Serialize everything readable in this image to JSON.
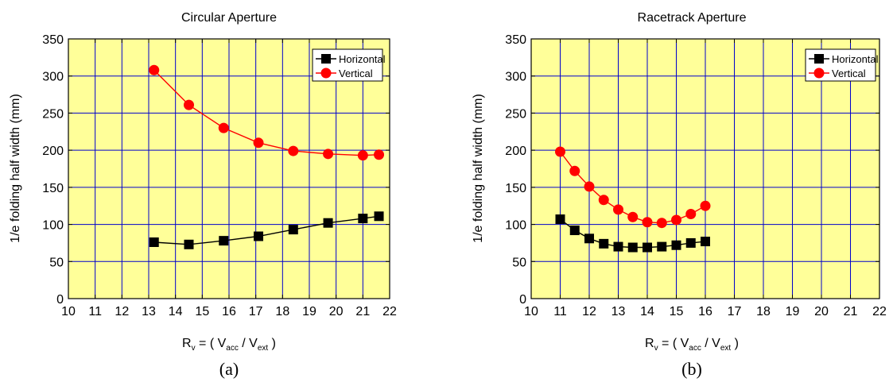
{
  "colors": {
    "plot_background": "#ffff99",
    "grid": "#0000cc",
    "horizontal_series": "#000000",
    "vertical_series": "#ff0000"
  },
  "chart_data": [
    {
      "type": "line",
      "title": "Circular Aperture",
      "caption": "(a)",
      "ylabel": "1/e folding half width (mm)",
      "xlabel": {
        "main": "R",
        "sub_v": "v",
        "eq": " = ( V",
        "sub_acc": "acc",
        "slash": " / V",
        "sub_ext": "ext",
        "close": " )"
      },
      "xlim": [
        10,
        22
      ],
      "ylim": [
        0,
        350
      ],
      "xticks": [
        "10",
        "11",
        "12",
        "13",
        "14",
        "15",
        "16",
        "17",
        "18",
        "19",
        "20",
        "21",
        "22"
      ],
      "yticks": [
        "0",
        "50",
        "100",
        "150",
        "200",
        "250",
        "300",
        "350"
      ],
      "grid": true,
      "legend_position": "top-right",
      "series": [
        {
          "name": "Horizontal",
          "marker": "square",
          "color": "#000000",
          "x": [
            13.2,
            14.5,
            15.8,
            17.1,
            18.4,
            19.7,
            21.0,
            21.6
          ],
          "y": [
            76,
            73,
            78,
            84,
            93,
            102,
            108,
            111
          ]
        },
        {
          "name": "Vertical",
          "marker": "circle",
          "color": "#ff0000",
          "x": [
            13.2,
            14.5,
            15.8,
            17.1,
            18.4,
            19.7,
            21.0,
            21.6
          ],
          "y": [
            308,
            261,
            230,
            210,
            199,
            195,
            193,
            194
          ]
        }
      ]
    },
    {
      "type": "line",
      "title": "Racetrack Aperture",
      "caption": "(b)",
      "ylabel": "1/e folding half width (mm)",
      "xlabel": {
        "main": "R",
        "sub_v": "v",
        "eq": " = ( V",
        "sub_acc": "acc",
        "slash": " / V",
        "sub_ext": "ext",
        "close": " )"
      },
      "xlim": [
        10,
        22
      ],
      "ylim": [
        0,
        350
      ],
      "xticks": [
        "10",
        "11",
        "12",
        "13",
        "14",
        "15",
        "16",
        "17",
        "18",
        "19",
        "20",
        "21",
        "22"
      ],
      "yticks": [
        "0",
        "50",
        "100",
        "150",
        "200",
        "250",
        "300",
        "350"
      ],
      "grid": true,
      "legend_position": "top-right",
      "series": [
        {
          "name": "Horizontal",
          "marker": "square",
          "color": "#000000",
          "x": [
            11.0,
            11.5,
            12.0,
            12.5,
            13.0,
            13.5,
            14.0,
            14.5,
            15.0,
            15.5,
            16.0
          ],
          "y": [
            107,
            92,
            81,
            74,
            70,
            69,
            69,
            70,
            72,
            75,
            77
          ]
        },
        {
          "name": "Vertical",
          "marker": "circle",
          "color": "#ff0000",
          "x": [
            11.0,
            11.5,
            12.0,
            12.5,
            13.0,
            13.5,
            14.0,
            14.5,
            15.0,
            15.5,
            16.0
          ],
          "y": [
            198,
            172,
            151,
            133,
            120,
            110,
            103,
            102,
            106,
            114,
            125
          ]
        }
      ]
    }
  ]
}
